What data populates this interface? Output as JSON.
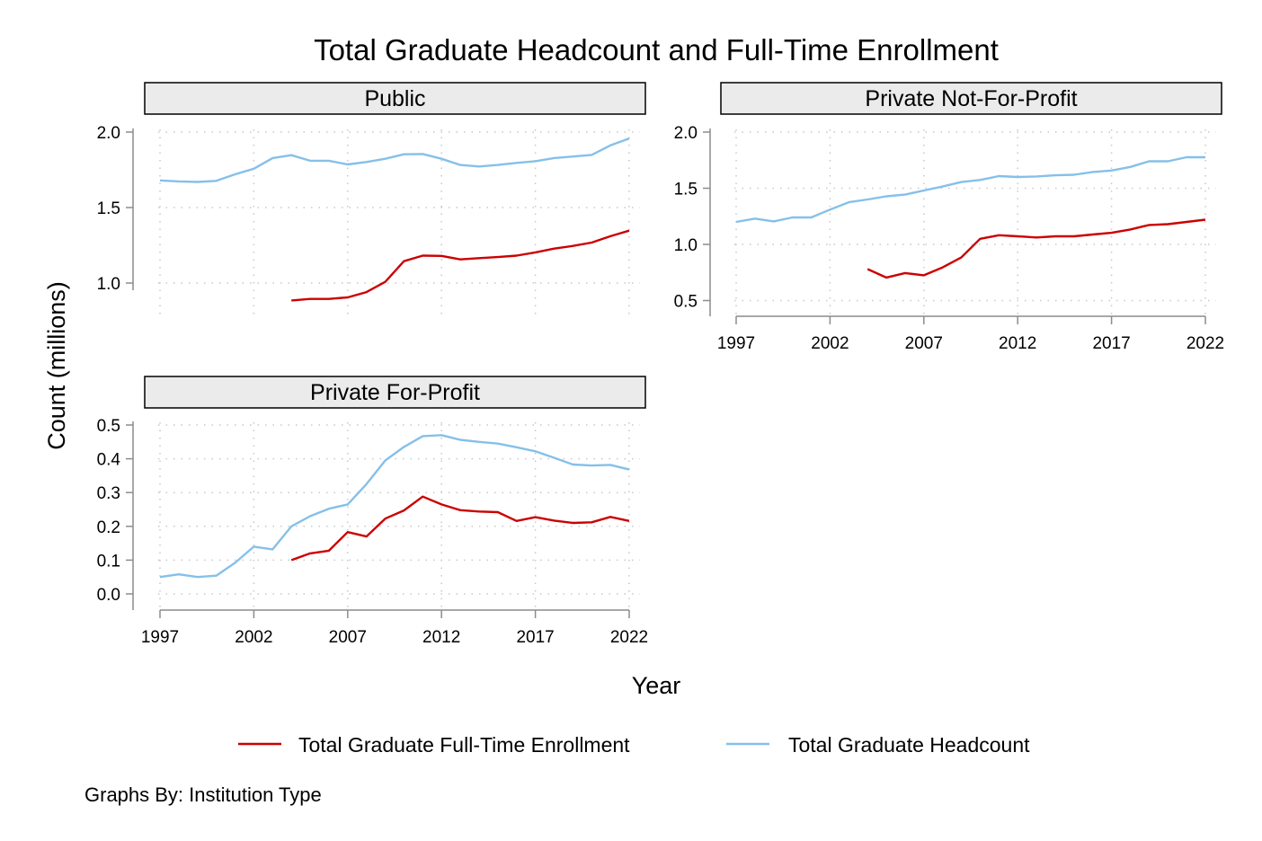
{
  "title": "Total Graduate Headcount and Full-Time Enrollment",
  "xlabel": "Year",
  "ylabel": "Count (millions)",
  "note": "Graphs By: Institution Type",
  "colors": {
    "full_time": "#cc0000",
    "headcount": "#85c0e9"
  },
  "legend": [
    {
      "label": "Total Graduate Full-Time Enrollment",
      "color": "#cc0000"
    },
    {
      "label": "Total Graduate Headcount",
      "color": "#85c0e9"
    }
  ],
  "chart_data": [
    {
      "type": "line",
      "title": "Public",
      "xticks": [
        "1997",
        "2002",
        "2007",
        "2012",
        "2017",
        "2022"
      ],
      "yticks": [
        "1.0",
        "1.5",
        "2.0"
      ],
      "ylim": [
        0.78,
        2.0
      ],
      "xlim": [
        1997,
        2022
      ],
      "x_axis_shown": false,
      "series": [
        {
          "name": "Total Graduate Headcount",
          "x": [
            1997,
            1998,
            1999,
            2000,
            2001,
            2002,
            2003,
            2004,
            2005,
            2006,
            2007,
            2008,
            2009,
            2010,
            2011,
            2012,
            2013,
            2014,
            2015,
            2016,
            2017,
            2018,
            2019,
            2020,
            2021,
            2022
          ],
          "values": [
            1.68,
            1.673,
            1.67,
            1.677,
            1.72,
            1.757,
            1.828,
            1.847,
            1.81,
            1.81,
            1.786,
            1.802,
            1.823,
            1.853,
            1.855,
            1.823,
            1.782,
            1.772,
            1.782,
            1.796,
            1.807,
            1.828,
            1.838,
            1.849,
            1.912,
            1.958
          ]
        },
        {
          "name": "Total Graduate Full-Time Enrollment",
          "x": [
            2004,
            2005,
            2006,
            2007,
            2008,
            2009,
            2010,
            2011,
            2012,
            2013,
            2014,
            2015,
            2016,
            2017,
            2018,
            2019,
            2020,
            2021,
            2022
          ],
          "values": [
            0.885,
            0.895,
            0.895,
            0.905,
            0.94,
            1.008,
            1.145,
            1.182,
            1.18,
            1.157,
            1.165,
            1.172,
            1.182,
            1.203,
            1.228,
            1.246,
            1.268,
            1.31,
            1.347
          ]
        }
      ]
    },
    {
      "type": "line",
      "title": "Private Not-For-Profit",
      "xticks": [
        "1997",
        "2002",
        "2007",
        "2012",
        "2017",
        "2022"
      ],
      "yticks": [
        "0.5",
        "1.0",
        "1.5",
        "2.0"
      ],
      "ylim": [
        0.36,
        2.0
      ],
      "xlim": [
        1997,
        2022
      ],
      "x_axis_shown": true,
      "series": [
        {
          "name": "Total Graduate Headcount",
          "x": [
            1997,
            1998,
            1999,
            2000,
            2001,
            2002,
            2003,
            2004,
            2005,
            2006,
            2007,
            2008,
            2009,
            2010,
            2011,
            2012,
            2013,
            2014,
            2015,
            2016,
            2017,
            2018,
            2019,
            2020,
            2021,
            2022
          ],
          "values": [
            1.2,
            1.23,
            1.205,
            1.24,
            1.24,
            1.31,
            1.375,
            1.4,
            1.428,
            1.443,
            1.48,
            1.515,
            1.555,
            1.574,
            1.608,
            1.6,
            1.605,
            1.615,
            1.62,
            1.645,
            1.658,
            1.69,
            1.74,
            1.74,
            1.776,
            1.776
          ]
        },
        {
          "name": "Total Graduate Full-Time Enrollment",
          "x": [
            2004,
            2005,
            2006,
            2007,
            2008,
            2009,
            2010,
            2011,
            2012,
            2013,
            2014,
            2015,
            2016,
            2017,
            2018,
            2019,
            2020,
            2021,
            2022
          ],
          "values": [
            0.78,
            0.705,
            0.745,
            0.725,
            0.795,
            0.885,
            1.05,
            1.082,
            1.072,
            1.062,
            1.072,
            1.072,
            1.088,
            1.103,
            1.133,
            1.173,
            1.18,
            1.2,
            1.22
          ]
        }
      ]
    },
    {
      "type": "line",
      "title": "Private For-Profit",
      "xticks": [
        "1997",
        "2002",
        "2007",
        "2012",
        "2017",
        "2022"
      ],
      "yticks": [
        "0.0",
        "0.1",
        "0.2",
        "0.3",
        "0.4",
        "0.5"
      ],
      "ylim": [
        0.0,
        0.5
      ],
      "xlim": [
        1997,
        2022
      ],
      "x_axis_shown": true,
      "series": [
        {
          "name": "Total Graduate Headcount",
          "x": [
            1997,
            1998,
            1999,
            2000,
            2001,
            2002,
            2003,
            2004,
            2005,
            2006,
            2007,
            2008,
            2009,
            2010,
            2011,
            2012,
            2013,
            2014,
            2015,
            2016,
            2017,
            2018,
            2019,
            2020,
            2021,
            2022
          ],
          "values": [
            0.05,
            0.058,
            0.05,
            0.054,
            0.092,
            0.14,
            0.132,
            0.2,
            0.23,
            0.252,
            0.265,
            0.325,
            0.395,
            0.435,
            0.467,
            0.47,
            0.456,
            0.45,
            0.445,
            0.434,
            0.422,
            0.403,
            0.383,
            0.38,
            0.382,
            0.368
          ]
        },
        {
          "name": "Total Graduate Full-Time Enrollment",
          "x": [
            2004,
            2005,
            2006,
            2007,
            2008,
            2009,
            2010,
            2011,
            2012,
            2013,
            2014,
            2015,
            2016,
            2017,
            2018,
            2019,
            2020,
            2021,
            2022
          ],
          "values": [
            0.1,
            0.12,
            0.128,
            0.183,
            0.17,
            0.223,
            0.247,
            0.288,
            0.265,
            0.248,
            0.244,
            0.242,
            0.216,
            0.227,
            0.217,
            0.21,
            0.212,
            0.228,
            0.216
          ]
        }
      ]
    }
  ]
}
